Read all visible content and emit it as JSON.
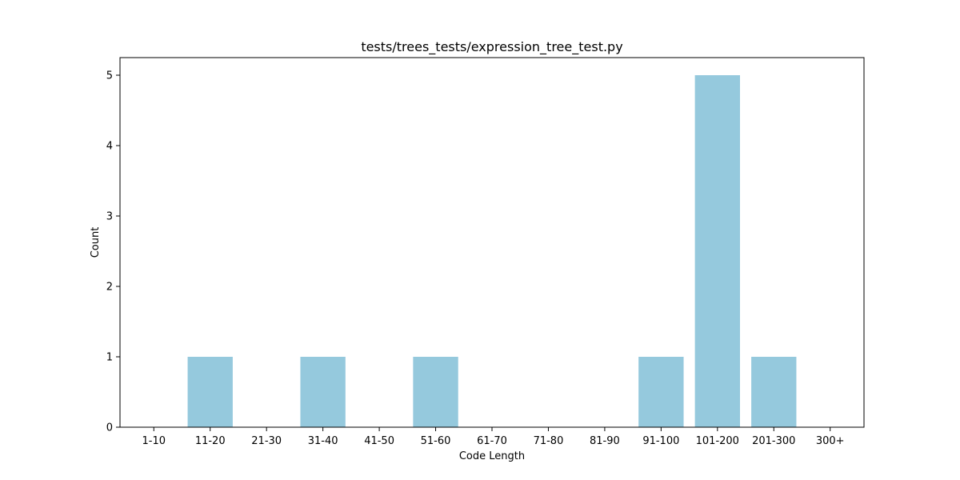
{
  "chart_data": {
    "type": "bar",
    "title": "tests/trees_tests/expression_tree_test.py",
    "xlabel": "Code Length",
    "ylabel": "Count",
    "categories": [
      "1-10",
      "11-20",
      "21-30",
      "31-40",
      "41-50",
      "51-60",
      "61-70",
      "71-80",
      "81-90",
      "91-100",
      "101-200",
      "201-300",
      "300+"
    ],
    "values": [
      0,
      1,
      0,
      1,
      0,
      1,
      0,
      0,
      0,
      1,
      5,
      1,
      0
    ],
    "ylim": [
      0,
      5.25
    ],
    "yticks": [
      0,
      1,
      2,
      3,
      4,
      5
    ],
    "bar_color": "#95c9dd",
    "grid": false,
    "legend": "none"
  }
}
